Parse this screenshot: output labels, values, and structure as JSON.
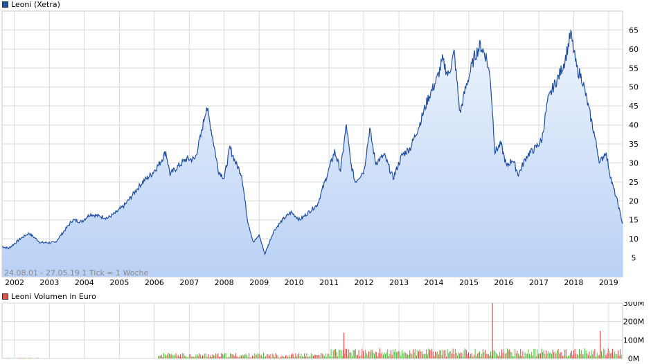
{
  "price_chart": {
    "legend": {
      "label": "Leoni (Xetra)",
      "color": "#1f4e9e"
    },
    "footer_note": "24.08.01 - 27.05.19   1 Tick = 1 Woche"
  },
  "volume_chart": {
    "legend": {
      "label": "Leoni Volumen in Euro",
      "color": "#d9534f"
    },
    "up_color": "#4cc03a",
    "down_color": "#e04a4a"
  },
  "colors": {
    "line": "#1f4e9e",
    "fill_top": "#eef4fd",
    "fill_bottom": "#b9d1f5",
    "grid": "#d9d9d9"
  },
  "chart_data": [
    {
      "type": "area",
      "series": [
        {
          "name": "Leoni (Xetra)",
          "points": [
            [
              "2001-08-24",
              8
            ],
            [
              "2001-11-01",
              7.5
            ],
            [
              "2002-03-01",
              10
            ],
            [
              "2002-06-01",
              11.5
            ],
            [
              "2002-10-01",
              9
            ],
            [
              "2003-03-01",
              9
            ],
            [
              "2003-06-01",
              12
            ],
            [
              "2003-09-01",
              15
            ],
            [
              "2003-12-01",
              14.5
            ],
            [
              "2004-03-01",
              16.5
            ],
            [
              "2004-06-01",
              16
            ],
            [
              "2004-09-01",
              15.5
            ],
            [
              "2004-12-01",
              17
            ],
            [
              "2005-03-01",
              19
            ],
            [
              "2005-06-01",
              22
            ],
            [
              "2005-09-01",
              25
            ],
            [
              "2005-12-01",
              27
            ],
            [
              "2006-03-01",
              30
            ],
            [
              "2006-05-01",
              33
            ],
            [
              "2006-06-15",
              27
            ],
            [
              "2006-09-01",
              29
            ],
            [
              "2006-12-01",
              31
            ],
            [
              "2007-03-01",
              31
            ],
            [
              "2007-05-01",
              37
            ],
            [
              "2007-07-01",
              45
            ],
            [
              "2007-09-01",
              37
            ],
            [
              "2007-11-01",
              28
            ],
            [
              "2008-01-01",
              26
            ],
            [
              "2008-03-01",
              34
            ],
            [
              "2008-05-01",
              30
            ],
            [
              "2008-07-01",
              27
            ],
            [
              "2008-09-01",
              15
            ],
            [
              "2008-11-01",
              9
            ],
            [
              "2009-01-01",
              11
            ],
            [
              "2009-03-01",
              6
            ],
            [
              "2009-06-01",
              12
            ],
            [
              "2009-09-01",
              15
            ],
            [
              "2009-12-01",
              17
            ],
            [
              "2010-03-01",
              15
            ],
            [
              "2010-06-01",
              17
            ],
            [
              "2010-09-01",
              19
            ],
            [
              "2010-12-01",
              26
            ],
            [
              "2011-03-01",
              33
            ],
            [
              "2011-05-01",
              28
            ],
            [
              "2011-07-01",
              40
            ],
            [
              "2011-08-15",
              30
            ],
            [
              "2011-10-01",
              25
            ],
            [
              "2012-01-01",
              28
            ],
            [
              "2012-03-01",
              39
            ],
            [
              "2012-05-01",
              30
            ],
            [
              "2012-08-01",
              32
            ],
            [
              "2012-11-01",
              26
            ],
            [
              "2013-02-01",
              32
            ],
            [
              "2013-05-01",
              34
            ],
            [
              "2013-08-01",
              40
            ],
            [
              "2013-11-01",
              47
            ],
            [
              "2014-02-01",
              52
            ],
            [
              "2014-04-01",
              57
            ],
            [
              "2014-06-01",
              53
            ],
            [
              "2014-08-01",
              59
            ],
            [
              "2014-10-01",
              43
            ],
            [
              "2014-12-01",
              50
            ],
            [
              "2015-03-01",
              58
            ],
            [
              "2015-05-01",
              61
            ],
            [
              "2015-07-01",
              58
            ],
            [
              "2015-08-15",
              52
            ],
            [
              "2015-10-01",
              33
            ],
            [
              "2015-12-01",
              35
            ],
            [
              "2016-02-01",
              29
            ],
            [
              "2016-04-01",
              31
            ],
            [
              "2016-06-01",
              27
            ],
            [
              "2016-09-01",
              32
            ],
            [
              "2016-12-01",
              34
            ],
            [
              "2017-02-01",
              36
            ],
            [
              "2017-04-01",
              46
            ],
            [
              "2017-06-01",
              50
            ],
            [
              "2017-08-01",
              53
            ],
            [
              "2017-10-01",
              57
            ],
            [
              "2017-12-01",
              64
            ],
            [
              "2018-02-01",
              55
            ],
            [
              "2018-04-01",
              52
            ],
            [
              "2018-06-01",
              45
            ],
            [
              "2018-08-01",
              38
            ],
            [
              "2018-10-01",
              30
            ],
            [
              "2018-12-01",
              33
            ],
            [
              "2019-02-01",
              25
            ],
            [
              "2019-04-01",
              20
            ],
            [
              "2019-05-27",
              14
            ]
          ]
        }
      ],
      "x_tick_labels": [
        "2002",
        "2003",
        "2004",
        "2005",
        "2006",
        "2007",
        "2008",
        "2009",
        "2010",
        "2011",
        "2012",
        "2013",
        "2014",
        "2015",
        "2016",
        "2017",
        "2018",
        "2019"
      ],
      "y_tick_labels": [
        "5",
        "10",
        "15",
        "20",
        "25",
        "30",
        "35",
        "40",
        "45",
        "50",
        "55",
        "60",
        "65"
      ],
      "x_range": [
        "2001-08-24",
        "2019-05-27"
      ],
      "ylim": [
        0,
        70
      ],
      "grid": true
    },
    {
      "type": "bar",
      "series": [
        {
          "name": "Leoni Volumen in Euro"
        }
      ],
      "y_tick_labels": [
        "0M",
        "100M",
        "200M",
        "300M"
      ],
      "ylim": [
        0,
        300
      ],
      "notable_values": [
        {
          "x": "2011-06-01",
          "value": 140
        },
        {
          "x": "2015-09-01",
          "value": 300
        },
        {
          "x": "2018-10-01",
          "value": 150
        }
      ],
      "grid": true
    }
  ]
}
